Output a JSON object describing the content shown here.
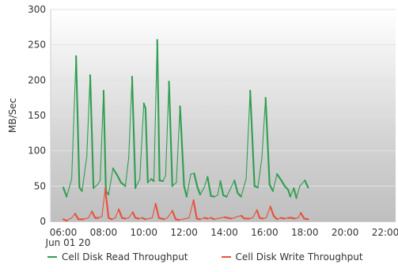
{
  "chart_data": {
    "type": "line",
    "title": "",
    "xlabel": "",
    "ylabel": "MB/Sec",
    "ylim": [
      0,
      300
    ],
    "yticks": [
      0,
      50,
      100,
      150,
      200,
      250,
      300
    ],
    "xlim": [
      "06:00",
      "22:30"
    ],
    "xticks": [
      {
        "time": "06:00",
        "label": "06:00",
        "sublabel": "Jun 01 20"
      },
      {
        "time": "08:00",
        "label": "08:00",
        "sublabel": ""
      },
      {
        "time": "10:00",
        "label": "10:00",
        "sublabel": ""
      },
      {
        "time": "12:00",
        "label": "12:00",
        "sublabel": ""
      },
      {
        "time": "14:00",
        "label": "14:00",
        "sublabel": ""
      },
      {
        "time": "16:00",
        "label": "16:00",
        "sublabel": ""
      },
      {
        "time": "18:00",
        "label": "18:00",
        "sublabel": ""
      },
      {
        "time": "20:00",
        "label": "20:00",
        "sublabel": ""
      },
      {
        "time": "22:00",
        "label": "22:00",
        "sublabel": ""
      }
    ],
    "grid": "horizontal",
    "legend_position": "bottom",
    "series": [
      {
        "name": "Cell Disk Read Throughput",
        "color": "#2e9e4f",
        "points": [
          [
            "06:00",
            48
          ],
          [
            "06:10",
            35
          ],
          [
            "06:25",
            60
          ],
          [
            "06:38",
            234
          ],
          [
            "06:48",
            48
          ],
          [
            "06:56",
            43
          ],
          [
            "07:10",
            92
          ],
          [
            "07:20",
            207
          ],
          [
            "07:30",
            47
          ],
          [
            "07:42",
            52
          ],
          [
            "07:50",
            58
          ],
          [
            "08:00",
            185
          ],
          [
            "08:07",
            43
          ],
          [
            "08:15",
            38
          ],
          [
            "08:28",
            75
          ],
          [
            "08:40",
            66
          ],
          [
            "08:52",
            55
          ],
          [
            "09:05",
            50
          ],
          [
            "09:15",
            90
          ],
          [
            "09:25",
            205
          ],
          [
            "09:35",
            47
          ],
          [
            "09:48",
            60
          ],
          [
            "10:00",
            167
          ],
          [
            "10:05",
            160
          ],
          [
            "10:12",
            55
          ],
          [
            "10:22",
            60
          ],
          [
            "10:30",
            57
          ],
          [
            "10:40",
            257
          ],
          [
            "10:47",
            58
          ],
          [
            "10:57",
            57
          ],
          [
            "11:05",
            65
          ],
          [
            "11:15",
            198
          ],
          [
            "11:25",
            50
          ],
          [
            "11:37",
            55
          ],
          [
            "11:48",
            163
          ],
          [
            "12:00",
            50
          ],
          [
            "12:08",
            35
          ],
          [
            "12:20",
            67
          ],
          [
            "12:30",
            68
          ],
          [
            "12:40",
            48
          ],
          [
            "12:48",
            38
          ],
          [
            "13:00",
            48
          ],
          [
            "13:10",
            63
          ],
          [
            "13:20",
            36
          ],
          [
            "13:30",
            35
          ],
          [
            "13:40",
            37
          ],
          [
            "13:48",
            57
          ],
          [
            "13:57",
            37
          ],
          [
            "14:07",
            35
          ],
          [
            "14:17",
            45
          ],
          [
            "14:30",
            58
          ],
          [
            "14:40",
            40
          ],
          [
            "14:50",
            35
          ],
          [
            "15:05",
            60
          ],
          [
            "15:17",
            185
          ],
          [
            "15:30",
            50
          ],
          [
            "15:40",
            48
          ],
          [
            "15:52",
            90
          ],
          [
            "16:03",
            175
          ],
          [
            "16:15",
            52
          ],
          [
            "16:25",
            43
          ],
          [
            "16:37",
            67
          ],
          [
            "16:50",
            58
          ],
          [
            "17:00",
            50
          ],
          [
            "17:10",
            45
          ],
          [
            "17:17",
            35
          ],
          [
            "17:27",
            47
          ],
          [
            "17:35",
            33
          ],
          [
            "17:45",
            50
          ],
          [
            "18:00",
            58
          ],
          [
            "18:10",
            48
          ]
        ]
      },
      {
        "name": "Cell Disk Write Throughput",
        "color": "#e8503a",
        "points": [
          [
            "06:00",
            3
          ],
          [
            "06:10",
            1
          ],
          [
            "06:25",
            5
          ],
          [
            "06:35",
            11
          ],
          [
            "06:45",
            3
          ],
          [
            "07:00",
            3
          ],
          [
            "07:15",
            5
          ],
          [
            "07:25",
            14
          ],
          [
            "07:35",
            5
          ],
          [
            "07:45",
            5
          ],
          [
            "07:55",
            7
          ],
          [
            "08:05",
            46
          ],
          [
            "08:15",
            5
          ],
          [
            "08:25",
            3
          ],
          [
            "08:35",
            5
          ],
          [
            "08:45",
            17
          ],
          [
            "08:55",
            5
          ],
          [
            "09:05",
            4
          ],
          [
            "09:15",
            5
          ],
          [
            "09:27",
            13
          ],
          [
            "09:35",
            5
          ],
          [
            "09:45",
            4
          ],
          [
            "09:55",
            5
          ],
          [
            "10:05",
            3
          ],
          [
            "10:15",
            4
          ],
          [
            "10:25",
            5
          ],
          [
            "10:35",
            25
          ],
          [
            "10:45",
            5
          ],
          [
            "11:00",
            3
          ],
          [
            "11:10",
            5
          ],
          [
            "11:25",
            15
          ],
          [
            "11:35",
            3
          ],
          [
            "11:45",
            2
          ],
          [
            "11:55",
            3
          ],
          [
            "12:05",
            4
          ],
          [
            "12:15",
            5
          ],
          [
            "12:28",
            30
          ],
          [
            "12:38",
            4
          ],
          [
            "12:48",
            3
          ],
          [
            "13:00",
            5
          ],
          [
            "13:10",
            4
          ],
          [
            "13:20",
            5
          ],
          [
            "13:30",
            3
          ],
          [
            "13:40",
            4
          ],
          [
            "13:50",
            5
          ],
          [
            "14:00",
            6
          ],
          [
            "14:10",
            5
          ],
          [
            "14:20",
            4
          ],
          [
            "14:30",
            5
          ],
          [
            "14:40",
            7
          ],
          [
            "14:50",
            8
          ],
          [
            "15:00",
            4
          ],
          [
            "15:15",
            4
          ],
          [
            "15:25",
            5
          ],
          [
            "15:37",
            16
          ],
          [
            "15:45",
            5
          ],
          [
            "15:55",
            4
          ],
          [
            "16:05",
            5
          ],
          [
            "16:17",
            21
          ],
          [
            "16:28",
            7
          ],
          [
            "16:38",
            3
          ],
          [
            "16:48",
            5
          ],
          [
            "17:00",
            4
          ],
          [
            "17:10",
            5
          ],
          [
            "17:20",
            5
          ],
          [
            "17:30",
            4
          ],
          [
            "17:40",
            5
          ],
          [
            "17:48",
            12
          ],
          [
            "17:58",
            4
          ],
          [
            "18:10",
            3
          ]
        ]
      }
    ]
  }
}
